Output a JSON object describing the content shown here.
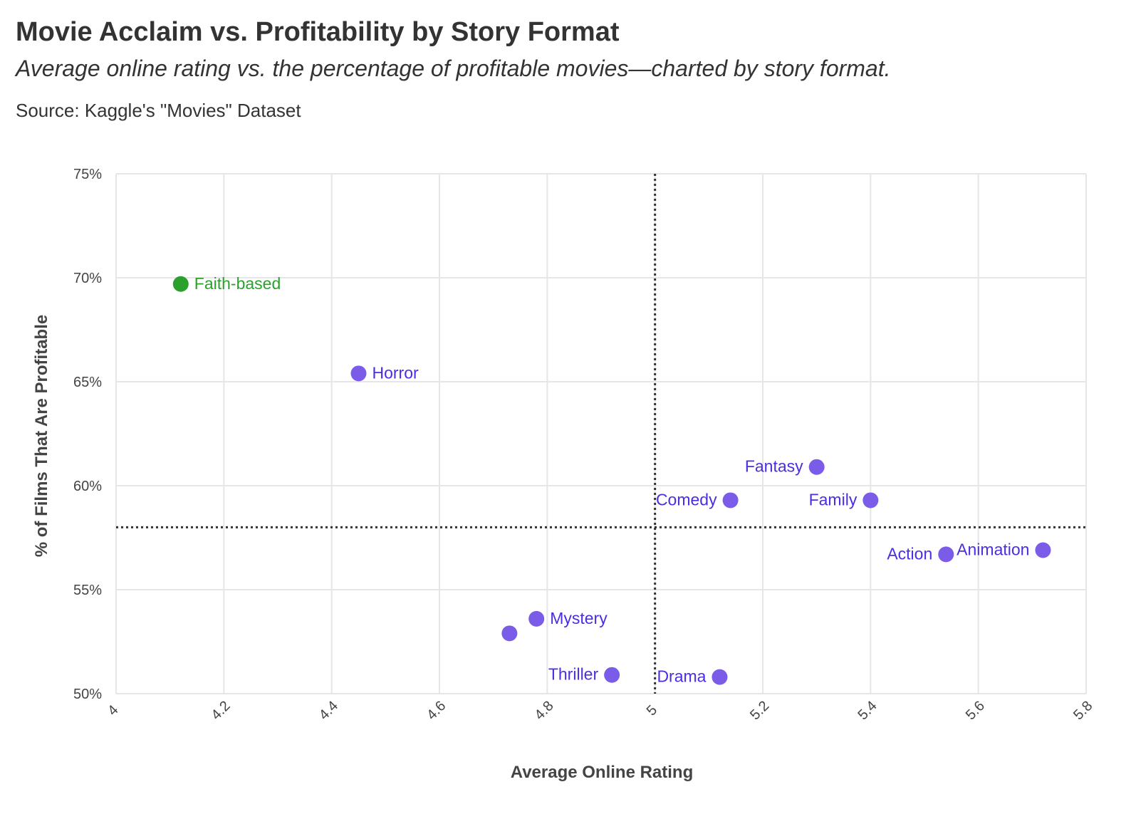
{
  "header": {
    "title": "Movie Acclaim vs. Profitability by Story Format",
    "subtitle": "Average online rating vs. the percentage of profitable movies—charted by story format.",
    "source": "Source: Kaggle's \"Movies\" Dataset"
  },
  "colors": {
    "highlight": "#2ca02c",
    "default": "#7a5ce8",
    "label_default": "#4a2ee0",
    "grid": "#e6e6e6",
    "reference_line": "#333333"
  },
  "chart_data": {
    "type": "scatter",
    "title": "Movie Acclaim vs. Profitability by Story Format",
    "xlabel": "Average Online Rating",
    "ylabel": "% of Films That Are Profitable",
    "xlim": [
      4,
      5.8
    ],
    "ylim": [
      50,
      75
    ],
    "x_ticks": [
      4,
      4.2,
      4.4,
      4.6,
      4.8,
      5,
      5.2,
      5.4,
      5.6,
      5.8
    ],
    "x_tick_labels": [
      "4",
      "4.2",
      "4.4",
      "4.6",
      "4.8",
      "5",
      "5.2",
      "5.4",
      "5.6",
      "5.8"
    ],
    "y_ticks": [
      50,
      55,
      60,
      65,
      70,
      75
    ],
    "y_tick_labels": [
      "50%",
      "55%",
      "60%",
      "65%",
      "70%",
      "75%"
    ],
    "grid": true,
    "reference_lines": {
      "x": 5.0,
      "y": 58.0,
      "style": "dotted"
    },
    "points": [
      {
        "label": "Faith-based",
        "x": 4.12,
        "y": 69.7,
        "highlight": true,
        "label_side": "right"
      },
      {
        "label": "Horror",
        "x": 4.45,
        "y": 65.4,
        "highlight": false,
        "label_side": "right"
      },
      {
        "label": "Fantasy",
        "x": 5.3,
        "y": 60.9,
        "highlight": false,
        "label_side": "left"
      },
      {
        "label": "Comedy",
        "x": 5.14,
        "y": 59.3,
        "highlight": false,
        "label_side": "left"
      },
      {
        "label": "Family",
        "x": 5.4,
        "y": 59.3,
        "highlight": false,
        "label_side": "left"
      },
      {
        "label": "Action",
        "x": 5.54,
        "y": 56.7,
        "highlight": false,
        "label_side": "left"
      },
      {
        "label": "Animation",
        "x": 5.72,
        "y": 56.9,
        "highlight": false,
        "label_side": "left"
      },
      {
        "label": "Mystery",
        "x": 4.78,
        "y": 53.6,
        "highlight": false,
        "label_side": "right"
      },
      {
        "label": "",
        "x": 4.73,
        "y": 52.9,
        "highlight": false,
        "label_side": "none"
      },
      {
        "label": "Thriller",
        "x": 4.92,
        "y": 50.9,
        "highlight": false,
        "label_side": "left"
      },
      {
        "label": "Drama",
        "x": 5.12,
        "y": 50.8,
        "highlight": false,
        "label_side": "left"
      }
    ]
  }
}
